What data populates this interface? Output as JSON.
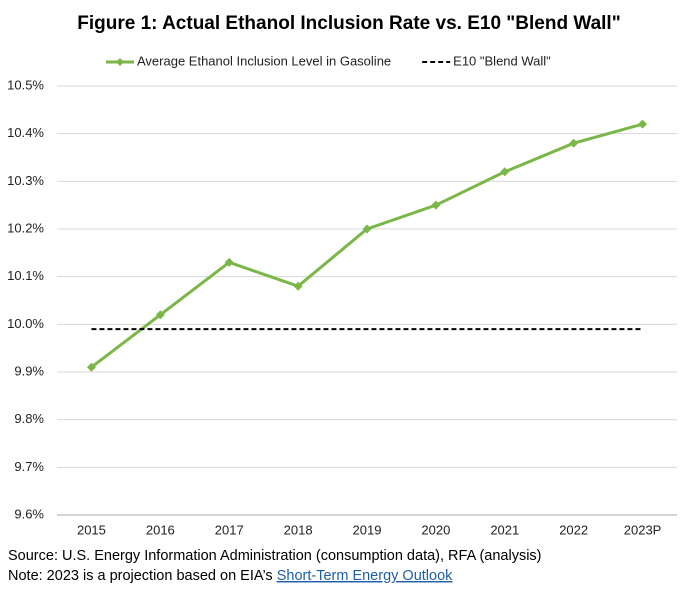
{
  "chart_data": {
    "type": "line",
    "title": "Figure 1: Actual Ethanol Inclusion Rate vs. E10 \"Blend Wall\"",
    "categories": [
      "2015",
      "2016",
      "2017",
      "2018",
      "2019",
      "2020",
      "2021",
      "2022",
      "2023P"
    ],
    "series": [
      {
        "name": "Average Ethanol Inclusion Level in Gasoline",
        "color": "#7ab648",
        "line_style": "solid",
        "marker": "diamond",
        "values": [
          9.91,
          10.02,
          10.13,
          10.08,
          10.2,
          10.25,
          10.32,
          10.38,
          10.42
        ]
      },
      {
        "name": "E10 \"Blend Wall\"",
        "color": "#000000",
        "line_style": "dashed",
        "marker": "none",
        "values": [
          9.99,
          9.99,
          9.99,
          9.99,
          9.99,
          9.99,
          9.99,
          9.99,
          9.99
        ]
      }
    ],
    "ylim": [
      9.6,
      10.5
    ],
    "yticks": [
      {
        "value": 9.6,
        "label": "9.6%"
      },
      {
        "value": 9.7,
        "label": "9.7%"
      },
      {
        "value": 9.8,
        "label": "9.8%"
      },
      {
        "value": 9.9,
        "label": "9.9%"
      },
      {
        "value": 10.0,
        "label": "10.0%"
      },
      {
        "value": 10.1,
        "label": "10.1%"
      },
      {
        "value": 10.2,
        "label": "10.2%"
      },
      {
        "value": 10.3,
        "label": "10.3%"
      },
      {
        "value": 10.4,
        "label": "10.4%"
      },
      {
        "value": 10.5,
        "label": "10.5%"
      }
    ],
    "grid": true,
    "legend": "top"
  },
  "footer": {
    "source": "Source: U.S. Energy Information Administration (consumption data), RFA (analysis)",
    "note": "Note: 2023 is a projection based on EIA’s",
    "link": "Short-Term Energy Outlook"
  }
}
